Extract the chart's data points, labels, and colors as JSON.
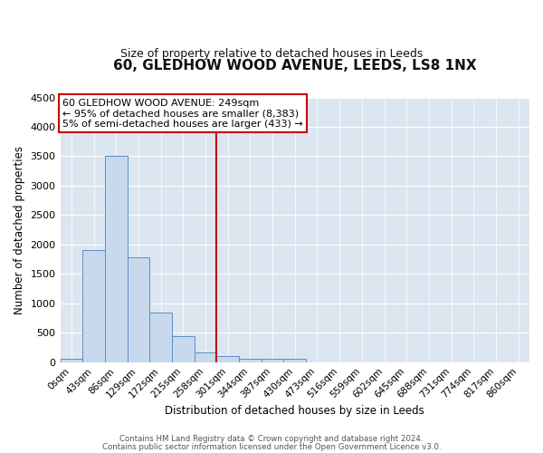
{
  "title": "60, GLEDHOW WOOD AVENUE, LEEDS, LS8 1NX",
  "subtitle": "Size of property relative to detached houses in Leeds",
  "xlabel": "Distribution of detached houses by size in Leeds",
  "ylabel": "Number of detached properties",
  "bar_labels": [
    "0sqm",
    "43sqm",
    "86sqm",
    "129sqm",
    "172sqm",
    "215sqm",
    "258sqm",
    "301sqm",
    "344sqm",
    "387sqm",
    "430sqm",
    "473sqm",
    "516sqm",
    "559sqm",
    "602sqm",
    "645sqm",
    "688sqm",
    "731sqm",
    "774sqm",
    "817sqm",
    "860sqm"
  ],
  "bar_values": [
    50,
    1900,
    3500,
    1780,
    840,
    450,
    170,
    100,
    65,
    50,
    50,
    0,
    0,
    0,
    0,
    0,
    0,
    0,
    0,
    0,
    0
  ],
  "bar_color": "#c9d9ed",
  "bar_edge_color": "#5b8ec4",
  "vline_x": 6.5,
  "vline_color": "#cc0000",
  "ylim": [
    0,
    4500
  ],
  "yticks": [
    0,
    500,
    1000,
    1500,
    2000,
    2500,
    3000,
    3500,
    4000,
    4500
  ],
  "annotation_text": "60 GLEDHOW WOOD AVENUE: 249sqm\n← 95% of detached houses are smaller (8,383)\n5% of semi-detached houses are larger (433) →",
  "annotation_box_color": "#ffffff",
  "annotation_box_edge_color": "#cc0000",
  "footer_line1": "Contains HM Land Registry data © Crown copyright and database right 2024.",
  "footer_line2": "Contains public sector information licensed under the Open Government Licence v3.0.",
  "plot_bg_color": "#dce6f1",
  "grid_color": "#ffffff"
}
